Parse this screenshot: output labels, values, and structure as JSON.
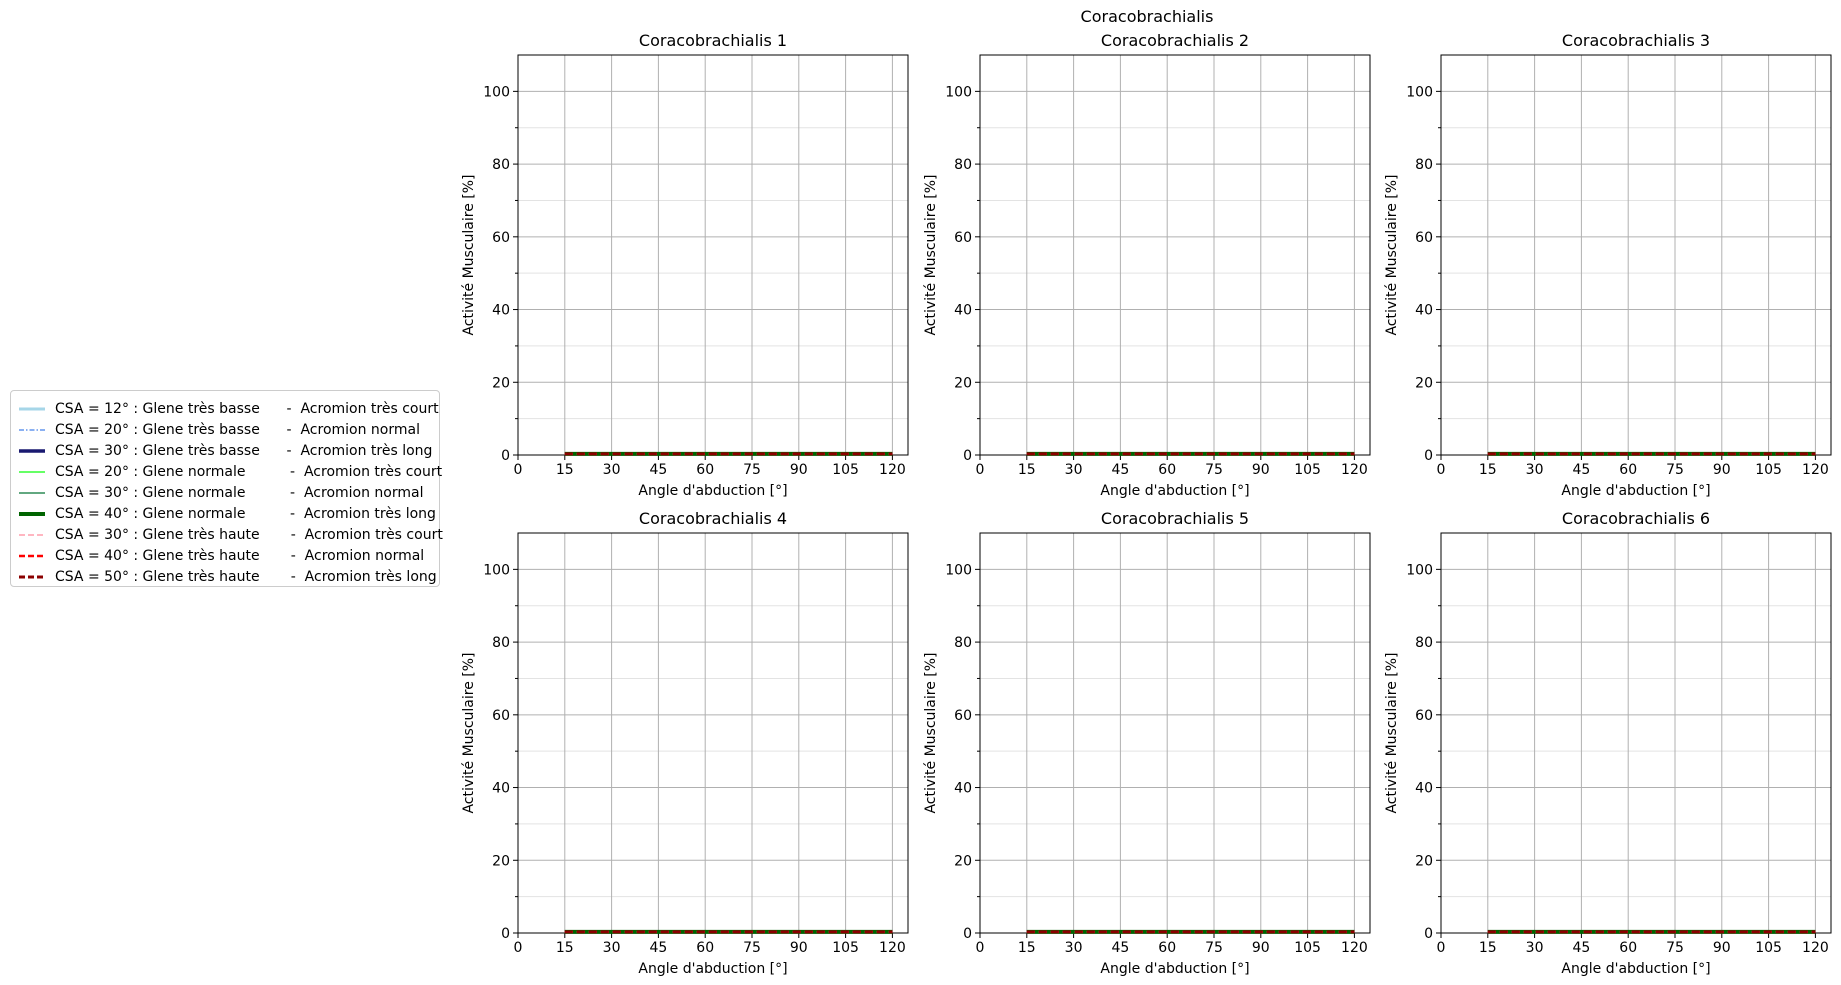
{
  "figure": {
    "suptitle": "Coracobrachialis"
  },
  "chart_data": [
    {
      "type": "line",
      "title": "Coracobrachialis 1",
      "xlabel": "Angle d'abduction [°]",
      "ylabel": "Activité Musculaire [%]",
      "xlim": [
        0,
        125
      ],
      "ylim": [
        0,
        110
      ],
      "xticks": [
        0,
        15,
        30,
        45,
        60,
        75,
        90,
        105,
        120
      ],
      "yticks": [
        0,
        20,
        40,
        60,
        80,
        100
      ],
      "grid": true,
      "x": [
        15,
        30,
        45,
        60,
        75,
        90,
        105,
        120
      ],
      "values": [
        0.3,
        0.3,
        0.3,
        0.3,
        0.3,
        0.3,
        0.3,
        0.3
      ]
    },
    {
      "type": "line",
      "title": "Coracobrachialis 2",
      "xlabel": "Angle d'abduction [°]",
      "ylabel": "Activité Musculaire [%]",
      "xlim": [
        0,
        125
      ],
      "ylim": [
        0,
        110
      ],
      "xticks": [
        0,
        15,
        30,
        45,
        60,
        75,
        90,
        105,
        120
      ],
      "yticks": [
        0,
        20,
        40,
        60,
        80,
        100
      ],
      "grid": true,
      "x": [
        15,
        30,
        45,
        60,
        75,
        90,
        105,
        120
      ],
      "values": [
        0.3,
        0.3,
        0.3,
        0.3,
        0.3,
        0.3,
        0.3,
        0.3
      ]
    },
    {
      "type": "line",
      "title": "Coracobrachialis 3",
      "xlabel": "Angle d'abduction [°]",
      "ylabel": "Activité Musculaire [%]",
      "xlim": [
        0,
        125
      ],
      "ylim": [
        0,
        110
      ],
      "xticks": [
        0,
        15,
        30,
        45,
        60,
        75,
        90,
        105,
        120
      ],
      "yticks": [
        0,
        20,
        40,
        60,
        80,
        100
      ],
      "grid": true,
      "x": [
        15,
        30,
        45,
        60,
        75,
        90,
        105,
        120
      ],
      "values": [
        0.3,
        0.3,
        0.3,
        0.3,
        0.3,
        0.3,
        0.3,
        0.3
      ]
    },
    {
      "type": "line",
      "title": "Coracobrachialis 4",
      "xlabel": "Angle d'abduction [°]",
      "ylabel": "Activité Musculaire [%]",
      "xlim": [
        0,
        125
      ],
      "ylim": [
        0,
        110
      ],
      "xticks": [
        0,
        15,
        30,
        45,
        60,
        75,
        90,
        105,
        120
      ],
      "yticks": [
        0,
        20,
        40,
        60,
        80,
        100
      ],
      "grid": true,
      "x": [
        15,
        30,
        45,
        60,
        75,
        90,
        105,
        120
      ],
      "values": [
        0.3,
        0.3,
        0.3,
        0.3,
        0.3,
        0.3,
        0.3,
        0.3
      ]
    },
    {
      "type": "line",
      "title": "Coracobrachialis 5",
      "xlabel": "Angle d'abduction [°]",
      "ylabel": "Activité Musculaire [%]",
      "xlim": [
        0,
        125
      ],
      "ylim": [
        0,
        110
      ],
      "xticks": [
        0,
        15,
        30,
        45,
        60,
        75,
        90,
        105,
        120
      ],
      "yticks": [
        0,
        20,
        40,
        60,
        80,
        100
      ],
      "grid": true,
      "x": [
        15,
        30,
        45,
        60,
        75,
        90,
        105,
        120
      ],
      "values": [
        0.3,
        0.3,
        0.3,
        0.3,
        0.3,
        0.3,
        0.3,
        0.3
      ]
    },
    {
      "type": "line",
      "title": "Coracobrachialis 6",
      "xlabel": "Angle d'abduction [°]",
      "ylabel": "Activité Musculaire [%]",
      "xlim": [
        0,
        125
      ],
      "ylim": [
        0,
        110
      ],
      "xticks": [
        0,
        15,
        30,
        45,
        60,
        75,
        90,
        105,
        120
      ],
      "yticks": [
        0,
        20,
        40,
        60,
        80,
        100
      ],
      "grid": true,
      "x": [
        15,
        30,
        45,
        60,
        75,
        90,
        105,
        120
      ],
      "values": [
        0.3,
        0.3,
        0.3,
        0.3,
        0.3,
        0.3,
        0.3,
        0.3
      ]
    }
  ],
  "legend": {
    "placement": "left",
    "entries": [
      {
        "label": "CSA = 12° : Glene très basse      -  Acromion très court",
        "color": "#a6d6e8",
        "style": "solid",
        "width": 3
      },
      {
        "label": "CSA = 20° : Glene très basse      -  Acromion normal",
        "color": "#6495ed",
        "style": "dashdot",
        "width": 1.5
      },
      {
        "label": "CSA = 30° : Glene très basse      -  Acromion très long",
        "color": "#191970",
        "style": "solid",
        "width": 3.5
      },
      {
        "label": "CSA = 20° : Glene normale          -  Acromion très court",
        "color": "#32ff32",
        "style": "solid",
        "width": 1.5
      },
      {
        "label": "CSA = 30° : Glene normale          -  Acromion normal",
        "color": "#2e8b57",
        "style": "solid",
        "width": 1.5
      },
      {
        "label": "CSA = 40° : Glene normale          -  Acromion très long",
        "color": "#006400",
        "style": "solid",
        "width": 4
      },
      {
        "label": "CSA = 30° : Glene très haute       -  Acromion très court",
        "color": "#ffb6c1",
        "style": "dashed",
        "width": 2
      },
      {
        "label": "CSA = 40° : Glene très haute       -  Acromion normal",
        "color": "#ff0000",
        "style": "dashed",
        "width": 2.5
      },
      {
        "label": "CSA = 50° : Glene très haute       -  Acromion très long",
        "color": "#8b0000",
        "style": "dashed",
        "width": 3
      }
    ]
  }
}
